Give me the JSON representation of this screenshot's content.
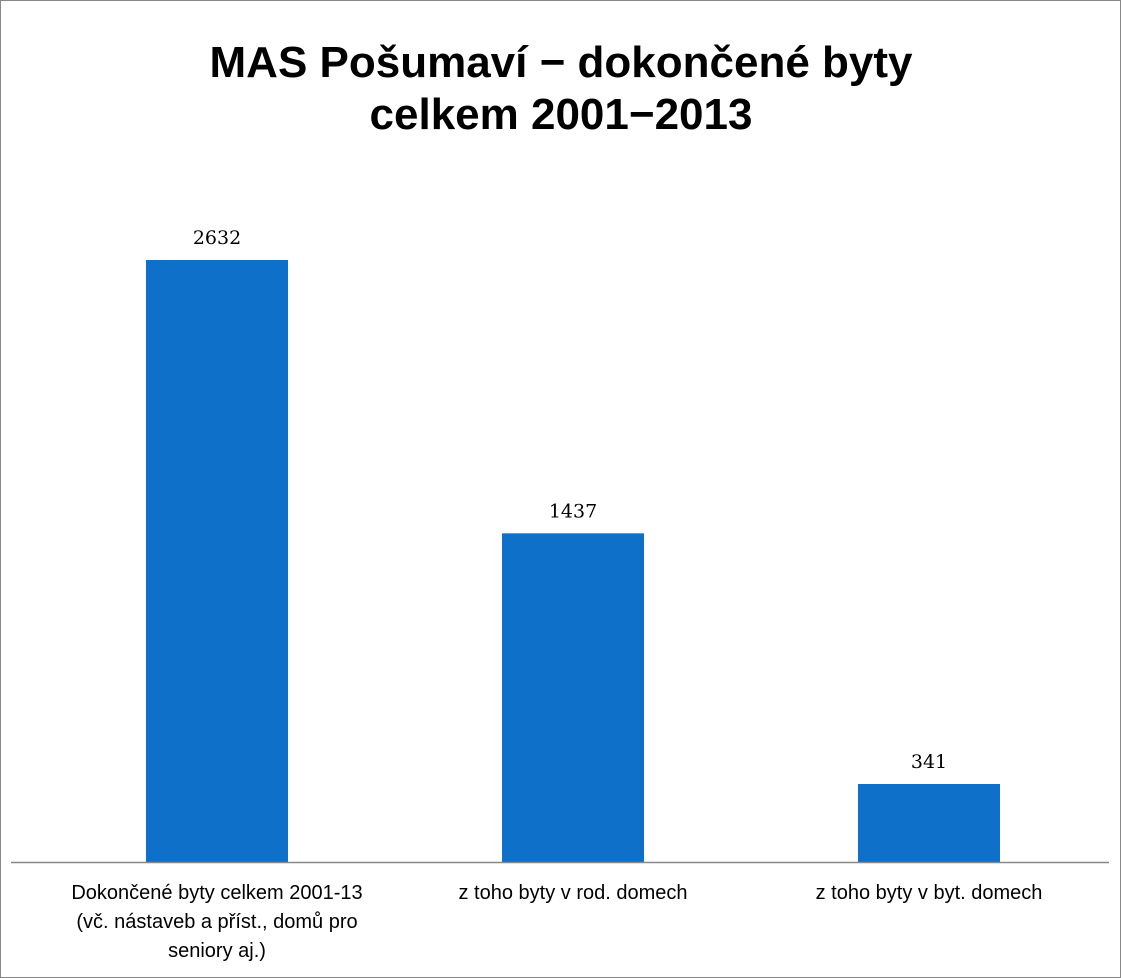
{
  "chart_data": {
    "type": "bar",
    "title": "MAS Pošumaví − dokončené byty celkem 2001−2013",
    "categories": [
      "Dokončené byty celkem 2001-13 (vč. nástaveb a příst., domů pro seniory aj.)",
      "z toho byty v rod. domech",
      "z toho byty v byt. domech"
    ],
    "values": [
      2632,
      1437,
      341
    ],
    "color": "#0e70c9"
  }
}
